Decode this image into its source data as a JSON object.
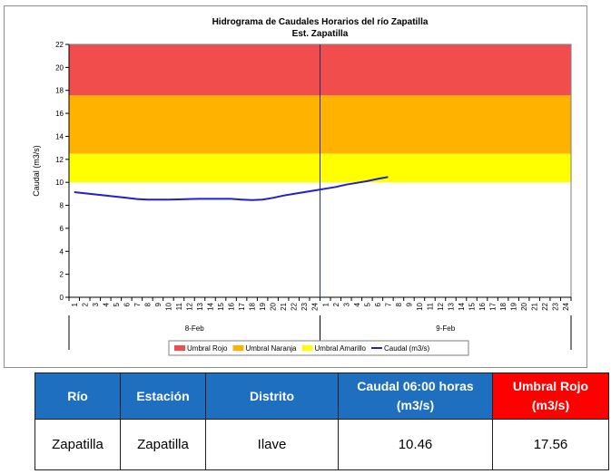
{
  "chart_data": {
    "type": "line",
    "title": "Hidrograma de Caudales Horarios del río Zapatilla",
    "subtitle": "Est. Zapatilla",
    "ylabel": "Caudal  (m3/s)",
    "ylim": [
      0,
      22
    ],
    "yticks": [
      "0",
      "2",
      "4",
      "6",
      "8",
      "10",
      "12",
      "14",
      "16",
      "18",
      "20",
      "22"
    ],
    "x_hours": [
      "1",
      "2",
      "3",
      "4",
      "5",
      "6",
      "7",
      "8",
      "9",
      "10",
      "11",
      "12",
      "13",
      "14",
      "15",
      "16",
      "17",
      "18",
      "19",
      "20",
      "21",
      "22",
      "23",
      "24",
      "1",
      "2",
      "3",
      "4",
      "5",
      "6",
      "7",
      "8",
      "9",
      "10",
      "11",
      "12",
      "13",
      "14",
      "15",
      "16",
      "17",
      "18",
      "19",
      "20",
      "21",
      "22",
      "23",
      "24"
    ],
    "days": [
      "8-Feb",
      "9-Feb"
    ],
    "thresholds": [
      {
        "name": "Umbral Rojo",
        "from": 17.56,
        "to": 22,
        "color": "#f24d4d"
      },
      {
        "name": "Umbral Naranja",
        "from": 12.5,
        "to": 17.56,
        "color": "#ffb300"
      },
      {
        "name": "Umbral Amarillo",
        "from": 10,
        "to": 12.5,
        "color": "#ffff00"
      }
    ],
    "series": [
      {
        "name": "Caudal (m3/s)",
        "color": "#1f1fd0",
        "x": [
          1,
          2,
          3,
          4,
          5,
          6,
          7,
          8,
          9,
          10,
          11,
          12,
          13,
          14,
          15,
          16,
          17,
          18,
          19,
          20,
          21,
          22,
          23,
          24,
          25,
          26,
          27,
          28,
          29,
          30,
          31
        ],
        "values": [
          9.15,
          9.05,
          8.95,
          8.85,
          8.75,
          8.65,
          8.55,
          8.5,
          8.5,
          8.5,
          8.52,
          8.55,
          8.56,
          8.56,
          8.56,
          8.56,
          8.5,
          8.45,
          8.5,
          8.65,
          8.85,
          9.0,
          9.15,
          9.3,
          9.45,
          9.6,
          9.8,
          9.95,
          10.1,
          10.3,
          10.46
        ]
      }
    ],
    "legend": [
      "Umbral Rojo",
      "Umbral Naranja",
      "Umbral Amarillo",
      "Caudal (m3/s)"
    ],
    "legend_position": "bottom",
    "grid": false
  },
  "table": {
    "headers": [
      "Río",
      "Estación",
      "Distrito",
      "Caudal 06:00 horas (m3/s)",
      "Umbral Rojo (m3/s)"
    ],
    "row": [
      "Zapatilla",
      "Zapatilla",
      "Ilave",
      "10.46",
      "17.56"
    ]
  }
}
